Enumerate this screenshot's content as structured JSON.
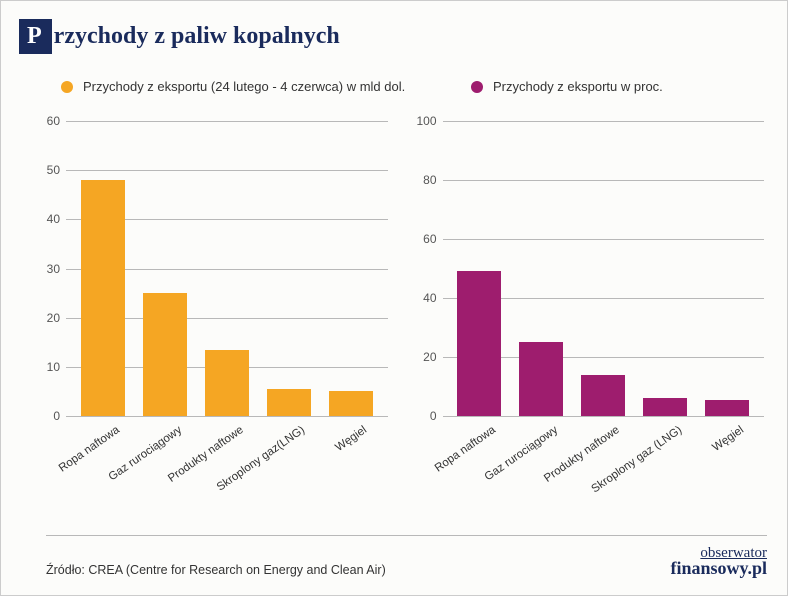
{
  "title": {
    "first_letter": "P",
    "rest": "rzychody z paliw kopalnych"
  },
  "colors": {
    "orange": "#f5a623",
    "magenta": "#9e1d6e",
    "navy": "#1a2b5c",
    "grid": "#b8b8b8",
    "bg": "#fcfcfa"
  },
  "left_chart": {
    "legend": "Przychody z eksportu (24 lutego - 4 czerwca) w mld dol.",
    "type": "bar",
    "ylim": [
      0,
      60
    ],
    "ytick_step": 10,
    "bar_color": "#f5a623",
    "categories": [
      "Ropa naftowa",
      "Gaz rurociągowy",
      "Produkty naftowe",
      "Skroplony gaz(LNG)",
      "Węgiel"
    ],
    "values": [
      48,
      25,
      13.5,
      5.5,
      5
    ]
  },
  "right_chart": {
    "legend": "Przychody z eksportu w proc.",
    "type": "bar",
    "ylim": [
      0,
      100
    ],
    "ytick_step": 20,
    "bar_color": "#9e1d6e",
    "categories": [
      "Ropa naftowa",
      "Gaz rurociągowy",
      "Produkty naftowe",
      "Skroplony gaz (LNG)",
      "Węgiel"
    ],
    "values": [
      49,
      25,
      14,
      6,
      5.5
    ]
  },
  "source": "Źródło: CREA (Centre for Research on Energy and Clean Air)",
  "brand": {
    "line1": "obserwator",
    "line2": "finansowy.pl"
  },
  "fonts": {
    "title_size": 24,
    "legend_size": 13,
    "tick_size": 12,
    "xlabel_size": 11.5,
    "source_size": 12.5
  }
}
